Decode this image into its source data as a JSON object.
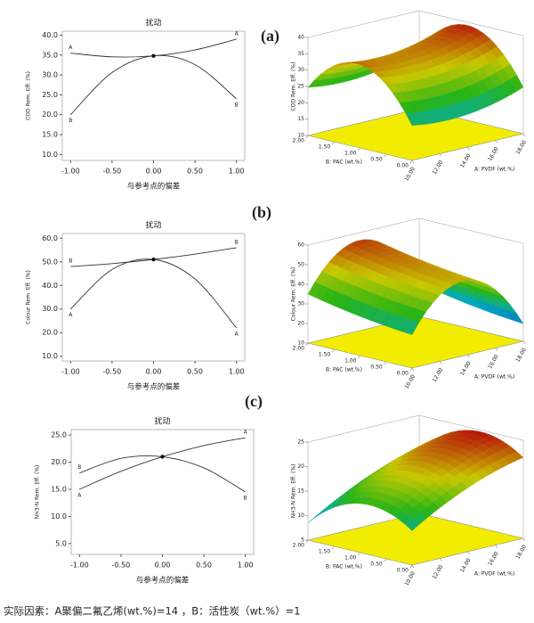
{
  "chart_data": [
    {
      "type": "line",
      "panel_label": "(a)",
      "title": "扰动",
      "x_label": "与参考点的偏差",
      "y_label": "COD Rem. Eff. (%)",
      "x": [
        -1,
        -0.5,
        0,
        0.5,
        1
      ],
      "xlim": [
        -1.1,
        1.1
      ],
      "xticks": [
        {
          "value": -1,
          "label": "-1.00"
        },
        {
          "value": -0.5,
          "label": "-0.50"
        },
        {
          "value": 0,
          "label": "0.00"
        },
        {
          "value": 0.5,
          "label": "0.50"
        },
        {
          "value": 1,
          "label": "1.00"
        }
      ],
      "ylim": [
        8.5,
        41
      ],
      "yticks": [
        {
          "value": 10,
          "label": "10.0"
        },
        {
          "value": 15,
          "label": "15.0"
        },
        {
          "value": 20,
          "label": "20.0"
        },
        {
          "value": 25,
          "label": "25.0"
        },
        {
          "value": 30,
          "label": "30.0"
        },
        {
          "value": 35,
          "label": "35.0"
        },
        {
          "value": 40,
          "label": "40.0"
        }
      ],
      "series": [
        {
          "name": "A",
          "color": "#333333",
          "values": [
            35.5,
            34.54,
            34.8,
            36.29,
            39
          ]
        },
        {
          "name": "B",
          "color": "#333333",
          "values": [
            20,
            30.6,
            34.8,
            32.6,
            24
          ]
        }
      ]
    },
    {
      "type": "surface",
      "z_label": "COD Rem. Eff. (%)",
      "x_label": "A: PVDF (wt.%)",
      "y_label": "B: PAC (wt.%)",
      "xlim": [
        10,
        18
      ],
      "xticks": [
        {
          "value": 10,
          "label": "10.00"
        },
        {
          "value": 12,
          "label": "12.00"
        },
        {
          "value": 14,
          "label": "14.00"
        },
        {
          "value": 16,
          "label": "16.00"
        },
        {
          "value": 18,
          "label": "18.00"
        }
      ],
      "ylim": [
        0,
        2
      ],
      "yticks": [
        {
          "value": 0,
          "label": "0.00"
        },
        {
          "value": 0.5,
          "label": "0.50"
        },
        {
          "value": 1,
          "label": "1.00"
        },
        {
          "value": 1.5,
          "label": "1.50"
        },
        {
          "value": 2,
          "label": "2.00"
        }
      ],
      "zlim": [
        10,
        40
      ],
      "zticks": [
        10,
        15,
        20,
        25,
        30,
        35,
        40
      ]
    },
    {
      "type": "line",
      "panel_label": "(b)",
      "title": "扰动",
      "x_label": "与参考点的偏差",
      "y_label": "Colour Rem. Eff. (%)",
      "x": [
        -1,
        -0.5,
        0,
        0.5,
        1
      ],
      "xlim": [
        -1.1,
        1.1
      ],
      "xticks": [
        {
          "value": -1,
          "label": "-1.00"
        },
        {
          "value": -0.5,
          "label": "-0.50"
        },
        {
          "value": 0,
          "label": "0.00"
        },
        {
          "value": 0.5,
          "label": "0.50"
        },
        {
          "value": 1,
          "label": "1.00"
        }
      ],
      "ylim": [
        8,
        62
      ],
      "yticks": [
        {
          "value": 10,
          "label": "10.0"
        },
        {
          "value": 20,
          "label": "20.0"
        },
        {
          "value": 30,
          "label": "30.0"
        },
        {
          "value": 40,
          "label": "40.0"
        },
        {
          "value": 50,
          "label": "50.0"
        },
        {
          "value": 60,
          "label": "60.0"
        }
      ],
      "series": [
        {
          "name": "A",
          "color": "#333333",
          "values": [
            30,
            46.75,
            51,
            42.75,
            22
          ]
        },
        {
          "name": "B",
          "color": "#333333",
          "values": [
            48,
            49.25,
            51,
            53.25,
            56
          ]
        }
      ]
    },
    {
      "type": "surface",
      "z_label": "Colour Rem. Eff. (%)",
      "x_label": "A: PVDF (wt.%)",
      "y_label": "B: PAC (wt.%)",
      "xlim": [
        10,
        18
      ],
      "xticks": [
        {
          "value": 10,
          "label": "10.00"
        },
        {
          "value": 12,
          "label": "12.00"
        },
        {
          "value": 14,
          "label": "14.00"
        },
        {
          "value": 16,
          "label": "16.00"
        },
        {
          "value": 18,
          "label": "18.00"
        }
      ],
      "ylim": [
        0,
        2
      ],
      "yticks": [
        {
          "value": 0,
          "label": "0.00"
        },
        {
          "value": 0.5,
          "label": "0.50"
        },
        {
          "value": 1,
          "label": "1.00"
        },
        {
          "value": 1.5,
          "label": "1.50"
        },
        {
          "value": 2,
          "label": "2.00"
        }
      ],
      "zlim": [
        10,
        60
      ],
      "zticks": [
        10,
        20,
        30,
        40,
        50,
        60
      ]
    },
    {
      "type": "line",
      "panel_label": "(c)",
      "title": "扰动",
      "x_label": "与参考点的偏差",
      "y_label": "NH3-N Rem. Eff. (%)",
      "x": [
        -1,
        -0.5,
        0,
        0.5,
        1
      ],
      "xlim": [
        -1.1,
        1.1
      ],
      "xticks": [
        {
          "value": -1,
          "label": "-1.00"
        },
        {
          "value": -0.5,
          "label": "-0.50"
        },
        {
          "value": 0,
          "label": "0.00"
        },
        {
          "value": 0.5,
          "label": "0.50"
        },
        {
          "value": 1,
          "label": "1.00"
        }
      ],
      "ylim": [
        3,
        26
      ],
      "yticks": [
        {
          "value": 5,
          "label": "5.0"
        },
        {
          "value": 10,
          "label": "10.0"
        },
        {
          "value": 15,
          "label": "15.0"
        },
        {
          "value": 20,
          "label": "20.0"
        },
        {
          "value": 25,
          "label": "25.0"
        }
      ],
      "series": [
        {
          "name": "A",
          "color": "#333333",
          "values": [
            15,
            18.31,
            21,
            23.06,
            24.5
          ]
        },
        {
          "name": "B",
          "color": "#333333",
          "values": [
            18,
            20.69,
            21,
            18.94,
            14.5
          ]
        }
      ]
    },
    {
      "type": "surface",
      "z_label": "NH3-N Rem. Eff. (%)",
      "x_label": "A: PVDF (wt.%)",
      "y_label": "B: PAC (wt.%)",
      "xlim": [
        10,
        18
      ],
      "xticks": [
        {
          "value": 10,
          "label": "10.00"
        },
        {
          "value": 12,
          "label": "12.00"
        },
        {
          "value": 14,
          "label": "14.00"
        },
        {
          "value": 16,
          "label": "16.00"
        },
        {
          "value": 18,
          "label": "18.00"
        }
      ],
      "ylim": [
        0,
        2
      ],
      "yticks": [
        {
          "value": 0,
          "label": "0.00"
        },
        {
          "value": 0.5,
          "label": "0.50"
        },
        {
          "value": 1,
          "label": "1.00"
        },
        {
          "value": 1.5,
          "label": "1.50"
        },
        {
          "value": 2,
          "label": "2.00"
        }
      ],
      "zlim": [
        5,
        25
      ],
      "zticks": [
        5,
        10,
        15,
        20,
        25
      ]
    }
  ],
  "footer": "实际因素：A聚偏二氟乙烯(wt.%)=14 ，B：活性炭（wt.%）=1"
}
